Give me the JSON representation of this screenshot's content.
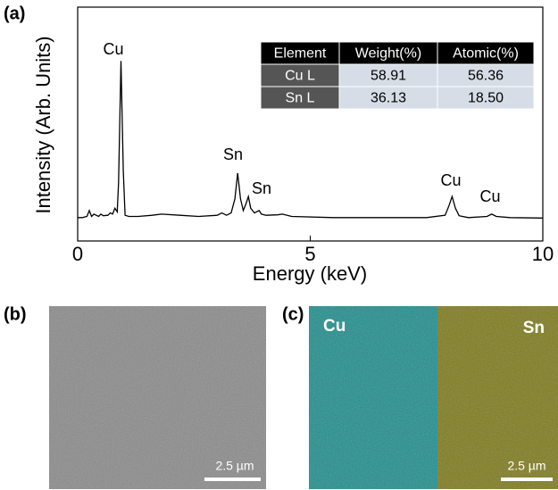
{
  "chart_data": {
    "type": "line",
    "panel_label": "(a)",
    "x_label": "Energy (keV)",
    "y_label": "Intensity (Arb. Units)",
    "xlim": [
      0,
      10
    ],
    "xticks": [
      0,
      5,
      10
    ],
    "ylim": [
      0,
      100
    ],
    "annotations": [
      "Cu",
      "Sn",
      "Sn",
      "Cu",
      "Cu"
    ],
    "series": [
      {
        "color": "#000000",
        "x": [
          0,
          0.1,
          0.2,
          0.25,
          0.3,
          0.35,
          0.45,
          0.5,
          0.55,
          0.65,
          0.7,
          0.75,
          0.8,
          0.85,
          0.88,
          0.93,
          0.98,
          1.02,
          1.1,
          1.3,
          1.6,
          1.8,
          2.2,
          2.6,
          3.0,
          3.1,
          3.2,
          3.3,
          3.38,
          3.44,
          3.5,
          3.56,
          3.62,
          3.67,
          3.72,
          3.8,
          3.9,
          3.95,
          4.05,
          4.3,
          4.4,
          4.6,
          5.5,
          6.5,
          7.5,
          7.9,
          7.98,
          8.05,
          8.12,
          8.2,
          8.4,
          8.8,
          8.9,
          9.0,
          9.3,
          10
        ],
        "values": [
          10,
          10,
          10.5,
          13,
          10.5,
          11.5,
          10.5,
          11.5,
          10.8,
          11,
          12,
          11.5,
          14,
          12.5,
          25,
          77,
          30,
          11,
          10.5,
          10.5,
          11,
          11.5,
          11,
          10.5,
          11,
          12,
          11,
          12,
          18,
          29,
          18,
          13,
          16,
          19,
          14,
          12,
          13,
          11.5,
          11,
          11.2,
          11.5,
          10.5,
          10,
          10,
          10,
          11,
          15,
          19,
          14,
          10.8,
          10,
          10.5,
          11.5,
          10.5,
          10,
          9.8
        ]
      }
    ]
  },
  "table": {
    "header": [
      "Element",
      "Weight(%)",
      "Atomic(%)"
    ],
    "rows": [
      [
        "Cu L",
        "58.91",
        "56.36"
      ],
      [
        "Sn L",
        "36.13",
        "18.50"
      ]
    ]
  },
  "panel_b": {
    "label": "(b)",
    "scale_bar": "2.5 µm"
  },
  "panel_c": {
    "label": "(c)",
    "maps": [
      "Cu",
      "Sn"
    ],
    "scale_bar": "2.5 µm"
  }
}
